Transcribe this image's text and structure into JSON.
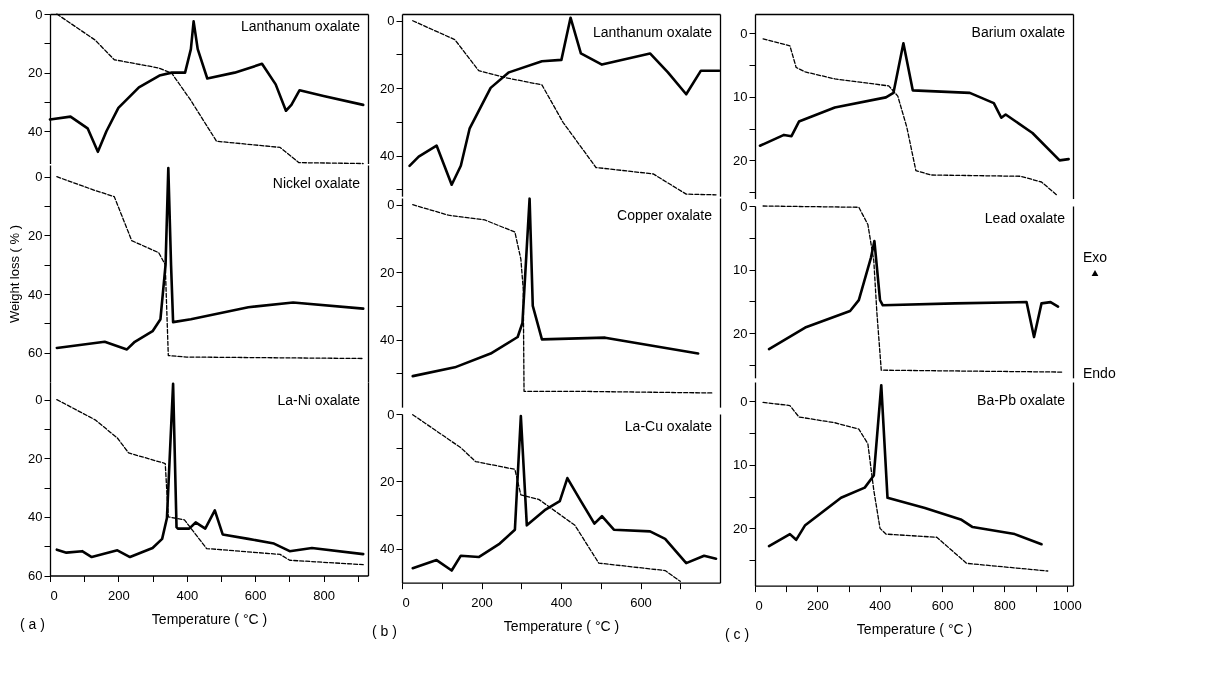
{
  "chart_data": [
    {
      "type": "line",
      "title": "Lanthanum oxalate",
      "xlim": [
        0,
        930
      ],
      "ylim": [
        51,
        0
      ],
      "yticks": [
        0,
        {
          "value": 10,
          "label": null
        },
        20,
        {
          "value": 30,
          "label": null
        },
        40
      ],
      "tick_labels": "y",
      "series": [
        {
          "color": "#000000",
          "line_style": "dashed",
          "x": [
            20,
            132,
            188,
            318,
            356,
            412,
            487,
            673,
            728,
            916
          ],
          "values": [
            0,
            8.9,
            15.6,
            18.4,
            20.2,
            29.5,
            43.4,
            45.5,
            50.7,
            51
          ]
        },
        {
          "color": "#000000",
          "line_style": "solid",
          "x": [
            0,
            60,
            110,
            140,
            165,
            200,
            260,
            320,
            356,
            395,
            412,
            420,
            432,
            460,
            540,
            620,
            660,
            690,
            706,
            730,
            800,
            916
          ],
          "values": [
            36,
            35,
            39,
            47,
            40,
            32,
            25,
            21,
            20,
            20,
            12,
            2.5,
            12,
            22,
            20,
            17,
            24,
            33,
            31,
            26,
            28,
            31
          ]
        }
      ]
    },
    {
      "type": "line",
      "title": "Nickel oxalate",
      "ylabel": "Weight loss ( % )",
      "xlim": [
        0,
        930
      ],
      "ylim": [
        70,
        -4
      ],
      "yticks": [
        0,
        {
          "value": 10,
          "label": null
        },
        20,
        {
          "value": 30,
          "label": null
        },
        40,
        {
          "value": 50,
          "label": null
        },
        60
      ],
      "tick_labels": "y",
      "series": [
        {
          "color": "#000000",
          "line_style": "dashed",
          "x": [
            20,
            132,
            188,
            239,
            318,
            337,
            346,
            400,
            916
          ],
          "values": [
            0,
            4.7,
            6.8,
            21.8,
            25.9,
            30,
            61,
            61.5,
            62
          ]
        },
        {
          "color": "#000000",
          "line_style": "solid",
          "x": [
            20,
            160,
            225,
            248,
            300,
            323,
            338,
            346,
            354,
            360,
            412,
            580,
            711,
            916
          ],
          "values": [
            58.4,
            56.3,
            58.9,
            56.3,
            52.7,
            48.6,
            30,
            -3,
            30,
            49.6,
            48.6,
            44.5,
            42.9,
            45
          ]
        }
      ]
    },
    {
      "type": "line",
      "title": "La-Ni oxalate",
      "xlabel": "Temperature ( °C )",
      "annotations": [
        "( a )"
      ],
      "xlim": [
        0,
        930
      ],
      "ylim": [
        60,
        -6
      ],
      "xticks": [
        0,
        {
          "value": 100,
          "label": null
        },
        200,
        {
          "value": 300,
          "label": null
        },
        400,
        {
          "value": 500,
          "label": null
        },
        600,
        {
          "value": 700,
          "label": null
        },
        800,
        {
          "value": 900,
          "label": null
        }
      ],
      "yticks": [
        0,
        {
          "value": 10,
          "label": null
        },
        20,
        {
          "value": 30,
          "label": null
        },
        40,
        {
          "value": 50,
          "label": null
        },
        60
      ],
      "series": [
        {
          "color": "#000000",
          "line_style": "dashed",
          "x": [
            20,
            132,
            197,
            230,
            337,
            346,
            393,
            458,
            673,
            701,
            916
          ],
          "values": [
            0,
            6.9,
            13.1,
            18.2,
            21.8,
            40,
            41,
            50.8,
            52.8,
            54.8,
            56.3
          ]
        },
        {
          "color": "#000000",
          "line_style": "solid",
          "x": [
            20,
            48,
            94,
            122,
            197,
            234,
            300,
            328,
            342,
            360,
            370,
            374,
            407,
            426,
            454,
            482,
            505,
            580,
            655,
            701,
            766,
            916
          ],
          "values": [
            51.2,
            52.2,
            51.7,
            53.7,
            51.4,
            53.7,
            50.6,
            47.5,
            40.4,
            -5.4,
            43.5,
            44,
            44,
            41.9,
            44,
            37.8,
            46,
            47.5,
            49.1,
            51.7,
            50.6,
            52.7
          ]
        }
      ]
    },
    {
      "type": "line",
      "title": "Lanthanum oxalate",
      "xlim": [
        0,
        800
      ],
      "ylim": [
        52,
        -2
      ],
      "yticks": [
        0,
        {
          "value": 10,
          "label": null
        },
        20,
        {
          "value": 30,
          "label": null
        },
        40,
        {
          "value": 50,
          "label": null
        }
      ],
      "tick_labels": "y",
      "series": [
        {
          "color": "#000000",
          "line_style": "dashed",
          "x": [
            27,
            133,
            193,
            261,
            352,
            405,
            488,
            632,
            715,
            790
          ],
          "values": [
            0,
            5.6,
            14.8,
            16.9,
            19,
            30.1,
            43.5,
            45.4,
            51.4,
            51.6
          ]
        },
        {
          "color": "#000000",
          "line_style": "solid",
          "x": [
            19,
            42,
            87,
            125,
            148,
            170,
            223,
            269,
            352,
            401,
            424,
            450,
            503,
            624,
            669,
            715,
            752,
            798
          ],
          "values": [
            43,
            40.3,
            37,
            48.6,
            43,
            32,
            19.9,
            15.3,
            12,
            11.6,
            -0.9,
            9.7,
            13,
            9.7,
            15.3,
            21.8,
            14.8,
            14.8
          ]
        }
      ]
    },
    {
      "type": "line",
      "title": "Copper oxalate",
      "xlim": [
        0,
        800
      ],
      "ylim": [
        60,
        -2
      ],
      "yticks": [
        0,
        {
          "value": 10,
          "label": null
        },
        20,
        {
          "value": 30,
          "label": null
        },
        40,
        {
          "value": 50,
          "label": null
        }
      ],
      "tick_labels": "y",
      "series": [
        {
          "color": "#000000",
          "line_style": "dashed",
          "x": [
            27,
            117,
            208,
            284,
            299,
            305,
            307,
            435,
            783
          ],
          "values": [
            0,
            3.1,
            4.5,
            8.1,
            16.1,
            25,
            55.3,
            55.3,
            55.8
          ]
        },
        {
          "color": "#000000",
          "line_style": "solid",
          "x": [
            27,
            133,
            223,
            291,
            303,
            321,
            329,
            352,
            511,
            745
          ],
          "values": [
            50.8,
            48.2,
            44.1,
            39.2,
            35,
            -1.8,
            30,
            39.9,
            39.4,
            44.1
          ]
        }
      ]
    },
    {
      "type": "line",
      "title": "La-Cu oxalate",
      "xlabel": "Temperature ( °C )",
      "annotations": [
        "( b )"
      ],
      "xlim": [
        0,
        800
      ],
      "ylim": [
        50,
        0
      ],
      "xticks": [
        0,
        {
          "value": 100,
          "label": null
        },
        200,
        {
          "value": 300,
          "label": null
        },
        400,
        {
          "value": 500,
          "label": null
        },
        600,
        {
          "value": 700,
          "label": null
        }
      ],
      "yticks": [
        0,
        {
          "value": 10,
          "label": null
        },
        20,
        {
          "value": 30,
          "label": null
        },
        40
      ],
      "series": [
        {
          "color": "#000000",
          "line_style": "dashed",
          "x": [
            27,
            148,
            185,
            284,
            299,
            344,
            435,
            495,
            662,
            700
          ],
          "values": [
            0.2,
            10,
            14.1,
            16.4,
            24,
            25.3,
            33,
            44.2,
            46.4,
            49.6
          ]
        },
        {
          "color": "#000000",
          "line_style": "solid",
          "x": [
            27,
            87,
            125,
            148,
            193,
            246,
            284,
            299,
            314,
            359,
            397,
            416,
            450,
            484,
            503,
            533,
            624,
            662,
            715,
            760,
            790
          ],
          "values": [
            45.7,
            43.3,
            46.4,
            42,
            42.4,
            38.4,
            34.3,
            0.6,
            33,
            28.5,
            25.8,
            19,
            25.8,
            32.5,
            30.3,
            34.3,
            34.8,
            37,
            44.2,
            42,
            42.9
          ]
        }
      ]
    },
    {
      "type": "line",
      "title": "Barium oxalate",
      "xlim": [
        0,
        1020
      ],
      "ylim": [
        26,
        -3
      ],
      "yticks": [
        0,
        {
          "value": 5,
          "label": null
        },
        10,
        {
          "value": 15,
          "label": null
        },
        20,
        {
          "value": 25,
          "label": null
        }
      ],
      "tick_labels": "y",
      "series": [
        {
          "color": "#000000",
          "line_style": "dashed",
          "x": [
            26,
            112,
            132,
            161,
            256,
            429,
            458,
            487,
            516,
            564,
            852,
            919,
            967
          ],
          "values": [
            0.9,
            2,
            5.4,
            6.1,
            7.2,
            8.3,
            9.9,
            14.8,
            21.6,
            22.3,
            22.5,
            23.4,
            25.4
          ]
        },
        {
          "color": "#000000",
          "line_style": "solid",
          "x": [
            16,
            93,
            117,
            141,
            256,
            420,
            444,
            476,
            506,
            689,
            766,
            790,
            804,
            890,
            977,
            1006
          ],
          "values": [
            17.7,
            16,
            16.2,
            13.9,
            11.7,
            10.1,
            9.4,
            1.6,
            9,
            9.4,
            11,
            13.3,
            12.8,
            15.7,
            20,
            19.8
          ]
        }
      ]
    },
    {
      "type": "line",
      "title": "Lead oxalate",
      "annotations": [
        "Exo",
        "Endo"
      ],
      "xlim": [
        0,
        1020
      ],
      "ylim": [
        27,
        0
      ],
      "yticks": [
        0,
        {
          "value": 5,
          "label": null
        },
        10,
        {
          "value": 15,
          "label": null
        },
        20,
        {
          "value": 25,
          "label": null
        }
      ],
      "tick_labels": "y",
      "series": [
        {
          "color": "#000000",
          "line_style": "dashed",
          "x": [
            26,
            333,
            362,
            381,
            391,
            405,
            987
          ],
          "values": [
            0,
            0.2,
            2.9,
            8.6,
            16.8,
            25.8,
            26.1
          ]
        },
        {
          "color": "#000000",
          "line_style": "solid",
          "x": [
            45,
            161,
            305,
            333,
            372,
            383,
            401,
            410,
            641,
            871,
            895,
            919,
            948,
            972
          ],
          "values": [
            22.5,
            19.1,
            16.5,
            14.8,
            8.1,
            5.5,
            14.8,
            15.6,
            15.3,
            15.1,
            20.6,
            15.3,
            15.1,
            15.8
          ]
        }
      ]
    },
    {
      "type": "line",
      "title": "Ba-Pb oxalate",
      "xlabel": "Temperature ( °C )",
      "annotations": [
        "( c )"
      ],
      "xlim": [
        0,
        1020
      ],
      "ylim": [
        29,
        -3
      ],
      "xticks": [
        0,
        {
          "value": 100,
          "label": null
        },
        200,
        {
          "value": 300,
          "label": null
        },
        400,
        {
          "value": 500,
          "label": null
        },
        600,
        {
          "value": 700,
          "label": null
        },
        800,
        {
          "value": 900,
          "label": null
        },
        1000
      ],
      "yticks": [
        0,
        {
          "value": 5,
          "label": null
        },
        10,
        {
          "value": 15,
          "label": null
        },
        20,
        {
          "value": 25,
          "label": null
        }
      ],
      "series": [
        {
          "color": "#000000",
          "line_style": "dashed",
          "x": [
            26,
            112,
            141,
            256,
            333,
            362,
            381,
            401,
            420,
            583,
            679,
            939
          ],
          "values": [
            0.2,
            0.7,
            2.5,
            3.4,
            4.4,
            6.7,
            14,
            20,
            20.9,
            21.4,
            25.5,
            26.7
          ]
        },
        {
          "color": "#000000",
          "line_style": "solid",
          "x": [
            45,
            112,
            132,
            161,
            276,
            352,
            381,
            405,
            425,
            545,
            660,
            698,
            833,
            919
          ],
          "values": [
            22.8,
            20.9,
            21.8,
            19.5,
            15.2,
            13.6,
            11.7,
            -2.5,
            15.2,
            16.8,
            18.6,
            19.8,
            20.9,
            22.5
          ]
        }
      ]
    }
  ]
}
